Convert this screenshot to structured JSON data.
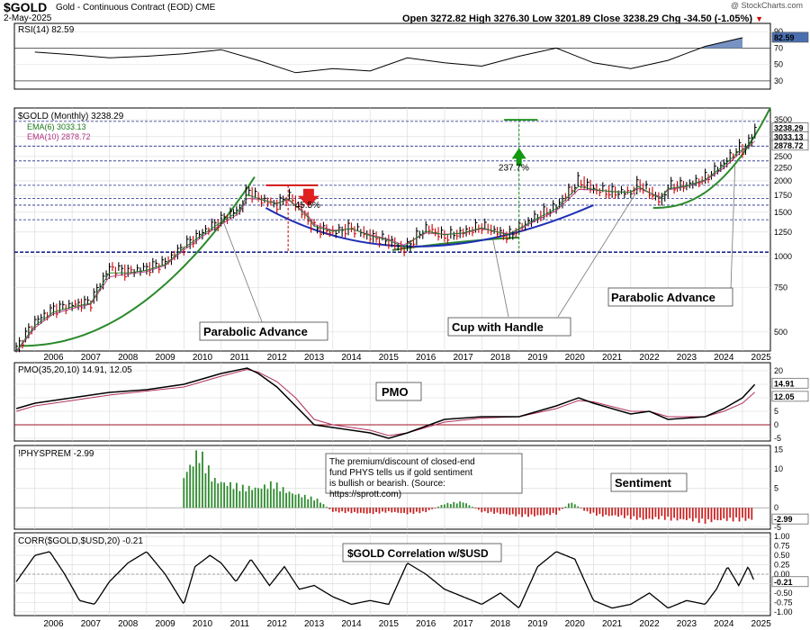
{
  "header": {
    "symbol": "$GOLD",
    "name": "Gold - Continuous Contract (EOD)",
    "exchange": "CME",
    "date": "2-May-2025",
    "watermark": "@ StockCharts.com",
    "quote": {
      "open_label": "Open",
      "open": "3272.82",
      "high_label": "High",
      "high": "3276.30",
      "low_label": "Low",
      "low": "3201.89",
      "close_label": "Close",
      "close": "3238.29",
      "chg_label": "Chg",
      "chg": "-34.50 (-1.05%)",
      "chg_icon": "down-triangle-icon"
    }
  },
  "colors": {
    "price": "#000000",
    "up_bar": "#000000",
    "down_bar": "#cc0000",
    "ema6": "#1a7a1a",
    "ema10": "#b03080",
    "rsi_fill": "#4a6fb0",
    "hist_pos": "#2e8b2e",
    "hist_neg": "#cc2222",
    "arc_blue": "#1f2fb5",
    "arc_green": "#2b8a2b",
    "hline": "#1f2a8a"
  },
  "chart_data": [
    {
      "type": "line",
      "panel": "rsi",
      "legend": "RSI(14) 82.59",
      "y_ticks": [
        30,
        50,
        70,
        90
      ],
      "ylim": [
        20,
        100
      ],
      "levels": [
        30,
        70
      ],
      "last_value_label": "82.59",
      "x": [
        2006,
        2007,
        2008,
        2009,
        2010,
        2011,
        2012,
        2013,
        2014,
        2015,
        2016,
        2017,
        2018,
        2019,
        2020,
        2021,
        2022,
        2023,
        2024,
        2025
      ],
      "values": [
        65,
        62,
        58,
        60,
        63,
        68,
        55,
        40,
        45,
        42,
        58,
        52,
        48,
        60,
        70,
        52,
        45,
        55,
        72,
        82.59
      ]
    },
    {
      "type": "line",
      "panel": "price",
      "scale": "log",
      "legend": [
        "$GOLD (Monthly) 3238.29",
        "EMA(6) 3033.13",
        "EMA(10) 2878.72"
      ],
      "y_ticks": [
        500,
        750,
        1000,
        1250,
        1500,
        1750,
        2000,
        2250,
        2500,
        2750,
        3000,
        3500
      ],
      "ylim": [
        420,
        3900
      ],
      "last_value_labels": [
        "3238.29",
        "3033.13",
        "2878.72"
      ],
      "x": [
        2005.5,
        2006.0,
        2006.5,
        2007.0,
        2007.5,
        2008.0,
        2008.5,
        2009.0,
        2009.5,
        2010.0,
        2010.5,
        2011.0,
        2011.5,
        2011.7,
        2012.0,
        2012.5,
        2012.8,
        2013.3,
        2013.5,
        2014.0,
        2014.5,
        2015.0,
        2015.5,
        2015.9,
        2016.5,
        2017.0,
        2017.5,
        2018.0,
        2018.7,
        2019.0,
        2019.5,
        2020.0,
        2020.6,
        2021.0,
        2021.5,
        2022.0,
        2022.2,
        2022.8,
        2023.0,
        2023.5,
        2024.0,
        2024.5,
        2024.9,
        2025.0,
        2025.2,
        2025.33
      ],
      "series": [
        {
          "values": [
            430,
            550,
            620,
            640,
            660,
            900,
            870,
            900,
            950,
            1100,
            1250,
            1400,
            1550,
            1850,
            1700,
            1600,
            1750,
            1400,
            1300,
            1250,
            1300,
            1200,
            1150,
            1060,
            1300,
            1200,
            1250,
            1320,
            1200,
            1300,
            1450,
            1580,
            2000,
            1850,
            1800,
            1800,
            1950,
            1650,
            1900,
            1920,
            2050,
            2350,
            2700,
            2650,
            2900,
            3238.29
          ]
        },
        {
          "values": [
            420,
            530,
            600,
            630,
            650,
            860,
            860,
            880,
            930,
            1080,
            1220,
            1370,
            1520,
            1760,
            1700,
            1620,
            1700,
            1450,
            1320,
            1260,
            1290,
            1210,
            1160,
            1090,
            1260,
            1220,
            1240,
            1300,
            1220,
            1290,
            1420,
            1550,
            1900,
            1850,
            1810,
            1800,
            1900,
            1700,
            1860,
            1910,
            2020,
            2300,
            2620,
            2660,
            2820,
            3033.13
          ]
        },
        {
          "values": [
            415,
            520,
            590,
            620,
            645,
            830,
            850,
            870,
            920,
            1060,
            1200,
            1340,
            1490,
            1700,
            1690,
            1630,
            1680,
            1480,
            1340,
            1270,
            1285,
            1220,
            1170,
            1110,
            1240,
            1225,
            1235,
            1290,
            1230,
            1280,
            1400,
            1520,
            1850,
            1840,
            1815,
            1800,
            1870,
            1720,
            1840,
            1900,
            2000,
            2250,
            2560,
            2640,
            2760,
            2878.72
          ]
        }
      ],
      "annotations": {
        "left_arc": "Parabolic Advance",
        "right_arc": "Parabolic Advance",
        "cup": "Cup with Handle",
        "decline_pct": "-45.5%",
        "rise_pct": "237.7%",
        "support_level": 1040,
        "peak_level": 1920,
        "target_level": 3500
      }
    },
    {
      "type": "line",
      "panel": "pmo",
      "legend": "PMO(35,20,10) 14.91, 12.05",
      "label": "PMO",
      "y_ticks": [
        -5,
        0,
        5,
        10,
        15,
        20
      ],
      "ylim": [
        -6,
        23
      ],
      "last_value_labels": [
        "14.91",
        "12.05"
      ],
      "x": [
        2005.5,
        2006,
        2007,
        2008,
        2009,
        2010,
        2011,
        2011.7,
        2012,
        2012.5,
        2013,
        2013.5,
        2014,
        2015,
        2015.5,
        2016,
        2017,
        2018,
        2019,
        2020,
        2020.6,
        2021,
        2022,
        2022.5,
        2023,
        2024,
        2024.5,
        2025,
        2025.33
      ],
      "series": [
        {
          "name": "PMO",
          "values": [
            6,
            8,
            10,
            12,
            13,
            15,
            19,
            21,
            19,
            14,
            7,
            0,
            -1,
            -3,
            -5,
            -3,
            2,
            3,
            3,
            7,
            10,
            8,
            4,
            5,
            2,
            3,
            6,
            10,
            14.91
          ]
        },
        {
          "name": "Signal",
          "values": [
            5,
            7,
            9,
            11,
            12.5,
            14,
            18,
            20.5,
            19.5,
            16,
            10,
            2,
            0,
            -2,
            -4,
            -3,
            1,
            2.5,
            3,
            6,
            9,
            8.5,
            5,
            5,
            3,
            3,
            5,
            8,
            12.05
          ]
        }
      ]
    },
    {
      "type": "bar",
      "panel": "premium",
      "legend": "!PHYSPREM -2.99",
      "label": "Sentiment",
      "note": "The premium/discount of closed-end fund PHYS tells us if gold sentiment is bullish or bearish. (Source: https://sprott.com)",
      "y_ticks": [
        -5,
        0,
        5,
        10,
        15
      ],
      "ylim": [
        -5.5,
        16
      ],
      "last_value_label": "-2.99",
      "x": [
        2010.0,
        2010.4,
        2010.8,
        2011.2,
        2011.6,
        2012.0,
        2012.4,
        2012.8,
        2013.2,
        2013.6,
        2014.0,
        2014.5,
        2015.0,
        2015.5,
        2016.0,
        2016.5,
        2017.0,
        2017.5,
        2018.0,
        2018.5,
        2019.0,
        2019.5,
        2020.0,
        2020.4,
        2020.8,
        2021.2,
        2021.6,
        2022.0,
        2022.4,
        2022.8,
        2023.2,
        2023.6,
        2024.0,
        2024.5,
        2025.0,
        2025.33
      ],
      "values": [
        8,
        14,
        7,
        6,
        5,
        5,
        6,
        4,
        3,
        2,
        -1,
        -1.2,
        -1.5,
        -1,
        -1.5,
        -1,
        1,
        1.5,
        -1,
        -1.5,
        -2,
        -2,
        -1.5,
        1.5,
        -1,
        -2,
        -2,
        -2.5,
        -3,
        -2.5,
        -3,
        -3,
        -3.5,
        -3,
        -3,
        -2.99
      ]
    },
    {
      "type": "line",
      "panel": "correlation",
      "legend": "CORR($GOLD,$USD,20) -0.21",
      "label": "$GOLD Correlation w/$USD",
      "y_ticks": [
        -1.0,
        -0.75,
        -0.5,
        -0.25,
        0.0,
        0.25,
        0.5,
        0.75,
        1.0
      ],
      "tick_labels": [
        "1.00",
        "0.75",
        "0.50",
        "0.25",
        "0.00",
        "-0.25",
        "-0.50",
        "-0.75",
        "-1.00"
      ],
      "ylim": [
        -1.1,
        1.1
      ],
      "last_value_label": "-0.21",
      "x": [
        2005.5,
        2006.0,
        2006.4,
        2006.8,
        2007.2,
        2007.6,
        2008.0,
        2008.5,
        2009.0,
        2009.5,
        2010.0,
        2010.3,
        2010.7,
        2011.0,
        2011.4,
        2011.8,
        2012.3,
        2012.7,
        2013.1,
        2013.5,
        2014.0,
        2014.5,
        2015.0,
        2015.5,
        2016.0,
        2016.5,
        2017.0,
        2017.5,
        2018.0,
        2018.5,
        2019.0,
        2019.5,
        2020.0,
        2020.5,
        2021.0,
        2021.5,
        2022.0,
        2022.5,
        2023.0,
        2023.5,
        2024.0,
        2024.3,
        2024.6,
        2024.9,
        2025.15,
        2025.33
      ],
      "values": [
        -0.2,
        0.5,
        0.6,
        0.0,
        -0.7,
        -0.8,
        -0.2,
        0.3,
        0.6,
        0.0,
        -0.8,
        0.2,
        0.5,
        0.3,
        -0.2,
        0.4,
        -0.3,
        0.2,
        -0.4,
        -0.3,
        -0.6,
        -0.8,
        -0.7,
        -0.8,
        0.3,
        0.0,
        -0.4,
        -0.6,
        -0.8,
        -0.5,
        -0.9,
        0.2,
        0.6,
        0.4,
        -0.7,
        -0.9,
        -0.8,
        -0.5,
        -0.9,
        -0.7,
        -0.8,
        -0.4,
        0.2,
        -0.3,
        0.2,
        -0.21
      ]
    }
  ],
  "x_axis": {
    "labels": [
      "2006",
      "2007",
      "2008",
      "2009",
      "2010",
      "2011",
      "2012",
      "2013",
      "2014",
      "2015",
      "2016",
      "2017",
      "2018",
      "2019",
      "2020",
      "2021",
      "2022",
      "2023",
      "2024",
      "2025"
    ]
  }
}
